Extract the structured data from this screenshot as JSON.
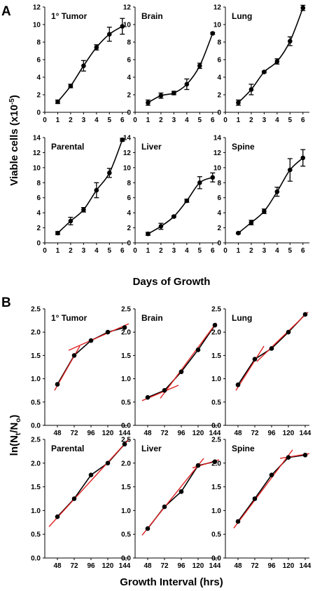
{
  "figure": {
    "panel_a_letter": "A",
    "panel_b_letter": "B",
    "panel_a_ylabel": "Viable cells (x10-5)",
    "panel_a_xlabel": "Days of Growth",
    "panel_b_ylabel": "ln(Nt/No)",
    "panel_b_xlabel": "Growth Interval (hrs)",
    "colors": {
      "data": "#000000",
      "fit": "#e02020"
    }
  },
  "chart_data": [
    {
      "type": "line",
      "panel": "A",
      "xlabel": "Days of Growth",
      "ylabel": "Viable cells (x10-5)",
      "xlim": [
        0,
        6.5
      ],
      "x_ticks": [
        0,
        1,
        2,
        3,
        4,
        5,
        6
      ],
      "grid": false,
      "subplots": [
        {
          "title": "1° Tumor",
          "ylim": [
            0,
            12
          ],
          "y_ticks": [
            0,
            2,
            4,
            6,
            8,
            10,
            12
          ],
          "x": [
            1,
            2,
            3,
            4,
            5,
            6
          ],
          "y": [
            1.2,
            3.0,
            5.3,
            7.4,
            8.9,
            9.8
          ],
          "err": [
            0.2,
            0.2,
            0.6,
            0.3,
            0.8,
            0.9
          ]
        },
        {
          "title": "Brain",
          "ylim": [
            0,
            12
          ],
          "y_ticks": [
            0,
            2,
            4,
            6,
            8,
            10,
            12
          ],
          "x": [
            1,
            2,
            3,
            4,
            5,
            6
          ],
          "y": [
            1.1,
            1.9,
            2.2,
            3.2,
            5.3,
            9.0
          ],
          "err": [
            0.3,
            0.3,
            0.2,
            0.6,
            0.3,
            0.1
          ]
        },
        {
          "title": "Lung",
          "ylim": [
            0,
            12
          ],
          "y_ticks": [
            0,
            2,
            4,
            6,
            8,
            10,
            12
          ],
          "x": [
            1,
            2,
            3,
            4,
            5,
            6
          ],
          "y": [
            1.1,
            2.6,
            4.6,
            5.8,
            8.1,
            11.9
          ],
          "err": [
            0.3,
            0.6,
            0.1,
            0.3,
            0.5,
            0.3
          ]
        },
        {
          "title": "Parental",
          "ylim": [
            0,
            14
          ],
          "y_ticks": [
            0,
            2,
            4,
            6,
            8,
            10,
            12,
            14
          ],
          "x": [
            1,
            2,
            3,
            4,
            5,
            6
          ],
          "y": [
            1.3,
            2.9,
            4.4,
            7.0,
            9.3,
            13.7
          ],
          "err": [
            0.2,
            0.5,
            0.3,
            1.0,
            0.6,
            0.2
          ]
        },
        {
          "title": "Liver",
          "ylim": [
            0,
            14
          ],
          "y_ticks": [
            0,
            2,
            4,
            6,
            8,
            10,
            12,
            14
          ],
          "x": [
            1,
            2,
            3,
            4,
            5,
            6
          ],
          "y": [
            1.2,
            2.2,
            3.5,
            5.6,
            8.0,
            8.7
          ],
          "err": [
            0.2,
            0.4,
            0.1,
            0.2,
            0.8,
            0.6
          ]
        },
        {
          "title": "Spine",
          "ylim": [
            0,
            14
          ],
          "y_ticks": [
            0,
            2,
            4,
            6,
            8,
            10,
            12,
            14
          ],
          "x": [
            1,
            2,
            3,
            4,
            5,
            6
          ],
          "y": [
            1.3,
            2.7,
            4.2,
            6.8,
            9.7,
            11.3
          ],
          "err": [
            0.1,
            0.3,
            0.3,
            0.6,
            1.5,
            1.1
          ]
        }
      ]
    },
    {
      "type": "line",
      "panel": "B",
      "xlabel": "Growth Interval (hrs)",
      "ylabel": "ln(Nt/No)",
      "xlim": [
        30,
        150
      ],
      "x_ticks": [
        48,
        72,
        96,
        120,
        144
      ],
      "ylim": [
        0,
        2.5
      ],
      "y_ticks": [
        "0.0",
        "0.5",
        "1.0",
        "1.5",
        "2.0",
        "2.5"
      ],
      "grid": false,
      "subplots": [
        {
          "title": "1° Tumor",
          "x": [
            48,
            72,
            96,
            120,
            144
          ],
          "y": [
            0.88,
            1.5,
            1.82,
            2.0,
            2.1
          ],
          "fits": [
            {
              "x": [
                44,
                80
              ],
              "y": [
                0.75,
                1.7
              ]
            },
            {
              "x": [
                64,
                150
              ],
              "y": [
                1.61,
                2.18
              ]
            }
          ]
        },
        {
          "title": "Brain",
          "x": [
            48,
            72,
            96,
            120,
            144
          ],
          "y": [
            0.6,
            0.75,
            1.15,
            1.62,
            2.15
          ],
          "fits": [
            {
              "x": [
                40,
                92
              ],
              "y": [
                0.53,
                0.86
              ]
            },
            {
              "x": [
                66,
                146
              ],
              "y": [
                0.58,
                2.2
              ]
            }
          ]
        },
        {
          "title": "Lung",
          "x": [
            48,
            72,
            96,
            120,
            144
          ],
          "y": [
            0.87,
            1.42,
            1.65,
            2.0,
            2.38
          ],
          "fits": [
            {
              "x": [
                45,
                85
              ],
              "y": [
                0.75,
                1.7
              ]
            },
            {
              "x": [
                75,
                148
              ],
              "y": [
                1.37,
                2.43
              ]
            }
          ]
        },
        {
          "title": "Parental",
          "x": [
            48,
            72,
            96,
            120,
            144
          ],
          "y": [
            0.87,
            1.25,
            1.75,
            2.0,
            2.4
          ],
          "fits": [
            {
              "x": [
                36,
                150
              ],
              "y": [
                0.66,
                2.5
              ]
            }
          ]
        },
        {
          "title": "Liver",
          "x": [
            48,
            72,
            96,
            120,
            144
          ],
          "y": [
            0.62,
            1.08,
            1.4,
            1.95,
            2.03
          ],
          "fits": [
            {
              "x": [
                40,
                128
              ],
              "y": [
                0.48,
                2.1
              ]
            },
            {
              "x": [
                112,
                150
              ],
              "y": [
                1.9,
                2.07
              ]
            }
          ]
        },
        {
          "title": "Spine",
          "x": [
            48,
            72,
            96,
            120,
            144
          ],
          "y": [
            0.77,
            1.25,
            1.75,
            2.12,
            2.17
          ],
          "fits": [
            {
              "x": [
                42,
                126
              ],
              "y": [
                0.63,
                2.28
              ]
            },
            {
              "x": [
                108,
                150
              ],
              "y": [
                2.1,
                2.2
              ]
            }
          ]
        }
      ]
    }
  ]
}
